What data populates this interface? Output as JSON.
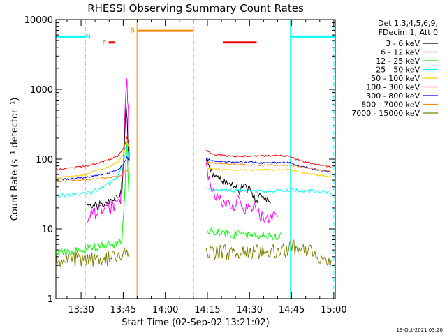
{
  "chart_data": {
    "type": "line",
    "title": "RHESSI Observing Summary Count Rates",
    "xlabel": "Start Time (02-Sep-02 13:21:02)",
    "ylabel": "Count Rate (s⁻¹ detector⁻¹)",
    "y_scale": "log",
    "ylim": [
      1,
      10000
    ],
    "xlim_minutes": [
      0,
      99.5
    ],
    "x_ticks": [
      {
        "label": "13:30",
        "minutes": 8.97
      },
      {
        "label": "13:45",
        "minutes": 23.97
      },
      {
        "label": "14:00",
        "minutes": 38.97
      },
      {
        "label": "14:15",
        "minutes": 53.97
      },
      {
        "label": "14:30",
        "minutes": 68.97
      },
      {
        "label": "14:45",
        "minutes": 83.97
      },
      {
        "label": "15:00",
        "minutes": 98.97
      }
    ],
    "y_ticks": [
      {
        "label": "1",
        "value": 1
      },
      {
        "label": "10",
        "value": 10
      },
      {
        "label": "100",
        "value": 100
      },
      {
        "label": "1000",
        "value": 1000
      },
      {
        "label": "10000",
        "value": 10000
      }
    ],
    "legend_header": [
      "Det 1,3,4,5,6,9,",
      "FDecim 1, Att 0"
    ],
    "legend_placement": "right",
    "footer": "19-Oct-2021 03:20",
    "series": [
      {
        "name": "3 - 6 keV",
        "color": "#000000",
        "x": [
          0,
          10.5,
          11,
          16,
          19.5,
          21.5,
          23.5,
          24.3,
          25.0,
          25.4,
          26.0,
          33,
          35,
          37,
          39.5,
          42,
          45,
          48,
          53.5,
          62.5,
          63.3,
          63.7,
          65,
          72,
          77,
          80
        ],
        "y": [
          null,
          null,
          20,
          22,
          26,
          30,
          35,
          120,
          560,
          400,
          70,
          null,
          null,
          null,
          null,
          null,
          null,
          null,
          null,
          null,
          null,
          null,
          null,
          null,
          null,
          null
        ]
      },
      {
        "name": "6 - 12 keV",
        "color": "#ff00ff",
        "x": [
          11,
          13,
          16,
          19.5,
          21.5,
          23.0,
          24.0,
          24.7,
          25.3,
          25.8,
          26.2
        ],
        "y": [
          15,
          16,
          18,
          20,
          23,
          28,
          70,
          600,
          1400,
          450,
          90
        ]
      },
      {
        "name": "12 - 25 keV",
        "color": "#00ff00",
        "x": [
          0,
          5,
          10.5,
          11,
          16,
          21,
          23.5,
          24.5,
          25.2,
          26.0
        ],
        "y": [
          4.5,
          4.8,
          5.0,
          5.5,
          5.6,
          6.0,
          7.0,
          30,
          200,
          30
        ]
      },
      {
        "name": "25 - 50 keV",
        "color": "#00ffff",
        "x": [
          0,
          5,
          10.5,
          13,
          16,
          19,
          22,
          24,
          25.3,
          26.0
        ],
        "y": [
          30,
          31,
          32,
          34,
          38,
          45,
          55,
          90,
          150,
          100
        ]
      },
      {
        "name": "50 - 100 keV",
        "color": "#ffcc00",
        "x": [
          0,
          5,
          10.5,
          14,
          18,
          22,
          24,
          25.3,
          26.0
        ],
        "y": [
          54,
          56,
          60,
          68,
          75,
          90,
          115,
          175,
          150
        ]
      },
      {
        "name": "100 - 300 keV",
        "color": "#ff0000",
        "x": [
          0,
          5,
          10.5,
          14,
          18,
          22,
          24,
          25.3,
          26.0
        ],
        "y": [
          71,
          74,
          80,
          86,
          95,
          110,
          140,
          205,
          170
        ]
      },
      {
        "name": "300 - 800 keV",
        "color": "#0000ff",
        "x": [
          0,
          5,
          10.5,
          14,
          18,
          22,
          24,
          25.3,
          26.0
        ],
        "y": [
          51,
          52,
          55,
          58,
          62,
          70,
          85,
          105,
          95
        ]
      },
      {
        "name": "800 - 7000 keV",
        "color": "#ff8800",
        "x": [
          0,
          5,
          10.5,
          14,
          18,
          22,
          24,
          25.3,
          26.0
        ],
        "y": [
          48,
          49,
          50,
          52,
          54,
          56,
          60,
          70,
          65
        ]
      },
      {
        "name": "7000 - 15000 keV",
        "color": "#808000",
        "x": [
          0,
          5,
          10.5,
          14,
          18,
          22,
          24,
          25.3,
          26.0
        ],
        "y": [
          3.5,
          3.6,
          3.7,
          3.7,
          3.8,
          3.8,
          4.0,
          4.5,
          4.0
        ]
      }
    ],
    "series_after_gap": [
      {
        "name": "3 - 6 keV",
        "x": [
          53.5,
          55,
          57,
          60,
          62,
          64,
          65,
          67,
          69,
          71,
          73,
          75,
          76.5
        ],
        "y": [
          100,
          65,
          55,
          48,
          45,
          40,
          36,
          42,
          35,
          28,
          28,
          27,
          26
        ]
      },
      {
        "name": "6 - 12 keV",
        "x": [
          53.5,
          55,
          57,
          59,
          61,
          63,
          65,
          67,
          69,
          71,
          73,
          75,
          77,
          79
        ],
        "y": [
          80,
          40,
          30,
          26,
          22,
          20,
          30,
          18,
          20,
          22,
          15,
          14,
          16,
          17
        ]
      },
      {
        "name": "12 - 25 keV",
        "x": [
          53.5,
          56,
          60,
          65,
          70,
          75,
          80
        ],
        "y": [
          9.5,
          9.0,
          8.6,
          8.3,
          8.1,
          8.0,
          7.9
        ]
      },
      {
        "name": "25 - 50 keV",
        "x": [
          53.5,
          56,
          60,
          65,
          70,
          75,
          80,
          85,
          90,
          95,
          98
        ],
        "y": [
          38,
          37,
          36,
          35,
          35,
          35,
          35,
          36,
          35,
          34,
          33
        ]
      },
      {
        "name": "50 - 100 keV",
        "x": [
          53.5,
          56,
          60,
          65,
          70,
          75,
          80,
          83,
          87,
          92,
          98
        ],
        "y": [
          75,
          72,
          70,
          70,
          70,
          70,
          70,
          71,
          65,
          60,
          56
        ]
      },
      {
        "name": "100 - 300 keV",
        "x": [
          53.5,
          54.5,
          56,
          60,
          65,
          70,
          75,
          80,
          83,
          87,
          92,
          98
        ],
        "y": [
          135,
          125,
          118,
          112,
          110,
          110,
          112,
          112,
          110,
          95,
          85,
          78
        ]
      },
      {
        "name": "300 - 800 keV",
        "x": [
          53.5,
          56,
          60,
          65,
          70,
          75,
          80,
          83,
          87,
          92,
          98
        ],
        "y": [
          100,
          95,
          92,
          90,
          90,
          88,
          90,
          90,
          80,
          72,
          65
        ]
      },
      {
        "name": "800 - 7000 keV",
        "x": [
          53.5,
          56,
          60,
          65,
          70,
          75,
          80,
          83,
          87,
          92,
          98
        ],
        "y": [
          92,
          88,
          86,
          84,
          82,
          82,
          82,
          82,
          78,
          72,
          66
        ]
      },
      {
        "name": "7000 - 15000 keV",
        "x": [
          53.5,
          60,
          70,
          80,
          82.5,
          84,
          90,
          98
        ],
        "y": [
          4.5,
          4.6,
          4.6,
          4.8,
          5.0,
          5.5,
          4.8,
          3.5
        ]
      }
    ],
    "annotations": [
      {
        "label": "N",
        "color": "#00ffff",
        "x": 11.5,
        "y": 5800
      },
      {
        "label": "F",
        "color": "#ff0000",
        "x": 17.2,
        "y": 4600
      },
      {
        "label": "S",
        "color": "#ff8800",
        "x": 27.3,
        "y": 7200
      }
    ],
    "bars": [
      {
        "color": "#00ffff",
        "x0": 0,
        "x1": 10.5,
        "y": 5700
      },
      {
        "color": "#00ffff",
        "x0": 83.5,
        "x1": 99.5,
        "y": 5700
      },
      {
        "color": "#ff0000",
        "x0": 18.8,
        "x1": 21.0,
        "y": 4700
      },
      {
        "color": "#ff0000",
        "x0": 59.5,
        "x1": 71.5,
        "y": 4700
      },
      {
        "color": "#ff8800",
        "x0": 28.9,
        "x1": 49.0,
        "y": 6900
      }
    ],
    "vlines": [
      {
        "color": "#00ffff",
        "x": 0,
        "style": "solid"
      },
      {
        "color": "#00ffff",
        "x": 10.5,
        "style": "dashed"
      },
      {
        "color": "#ff8800",
        "x": 28.9,
        "style": "solid"
      },
      {
        "color": "#ff8800",
        "x": 49.0,
        "style": "dashed"
      },
      {
        "color": "#00ffff",
        "x": 83.5,
        "style": "solid"
      },
      {
        "color": "#00ffff",
        "x": 99.0,
        "style": "dashed"
      }
    ]
  }
}
